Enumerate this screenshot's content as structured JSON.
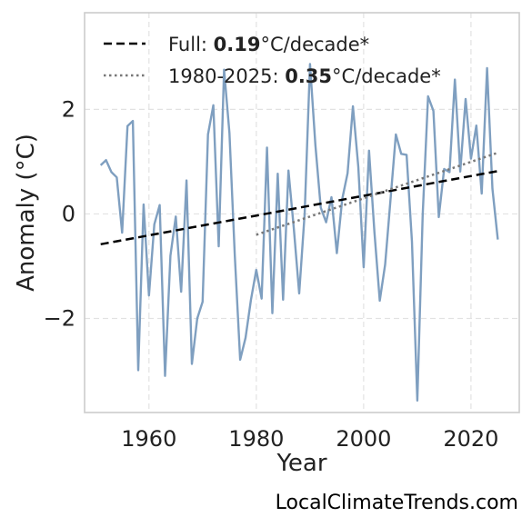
{
  "chart_data": {
    "type": "line",
    "xlabel": "Year",
    "ylabel": "Anomaly (°C)",
    "xlim": [
      1948,
      2029
    ],
    "ylim": [
      -3.8,
      3.85
    ],
    "xticks": [
      1960,
      1980,
      2000,
      2020
    ],
    "yticks": [
      -2,
      0,
      2
    ],
    "ytick_labels": [
      "−2",
      "0",
      "2"
    ],
    "grid": true,
    "legend_position": "top-left",
    "series": [
      {
        "style": "solid",
        "color": "#7f9fc0",
        "x": [
          1951,
          1952,
          1953,
          1954,
          1955,
          1956,
          1957,
          1958,
          1959,
          1960,
          1961,
          1962,
          1963,
          1964,
          1965,
          1966,
          1967,
          1968,
          1969,
          1970,
          1971,
          1972,
          1973,
          1974,
          1975,
          1976,
          1977,
          1978,
          1979,
          1980,
          1981,
          1982,
          1983,
          1984,
          1985,
          1986,
          1987,
          1988,
          1989,
          1990,
          1991,
          1992,
          1993,
          1994,
          1995,
          1996,
          1997,
          1998,
          1999,
          2000,
          2001,
          2002,
          2003,
          2004,
          2005,
          2006,
          2007,
          2008,
          2009,
          2010,
          2011,
          2012,
          2013,
          2014,
          2015,
          2016,
          2017,
          2018,
          2019,
          2020,
          2021,
          2022,
          2023,
          2024,
          2025
        ],
        "y": [
          0.93,
          1.03,
          0.8,
          0.7,
          -0.36,
          1.68,
          1.78,
          -2.99,
          0.18,
          -1.56,
          -0.2,
          0.17,
          -3.1,
          -0.8,
          -0.05,
          -1.49,
          0.64,
          -2.87,
          -2.0,
          -1.68,
          1.52,
          2.08,
          -0.62,
          2.76,
          1.55,
          -0.8,
          -2.79,
          -2.37,
          -1.65,
          -1.07,
          -1.62,
          1.27,
          -1.9,
          0.77,
          -1.64,
          0.83,
          -0.28,
          -1.52,
          0.0,
          2.87,
          1.32,
          0.12,
          -0.16,
          0.32,
          -0.75,
          0.28,
          0.78,
          2.06,
          0.9,
          -1.02,
          1.21,
          -0.34,
          -1.66,
          -0.97,
          0.27,
          1.52,
          1.15,
          1.13,
          -0.53,
          -3.57,
          -0.02,
          2.25,
          1.97,
          -0.06,
          0.86,
          0.8,
          2.57,
          0.81,
          2.2,
          1.06,
          1.69,
          0.39,
          2.79,
          0.48,
          -0.49
        ]
      },
      {
        "style": "dashed",
        "color": "#000000",
        "x": [
          1951,
          2025
        ],
        "y": [
          -0.58,
          0.82
        ]
      },
      {
        "style": "dotted",
        "color": "#777777",
        "x": [
          1980,
          2025
        ],
        "y": [
          -0.4,
          1.17
        ]
      }
    ],
    "legend": [
      {
        "style": "dashed",
        "color": "#000000",
        "prefix": "Full: ",
        "value": "0.19",
        "suffix": "°C/decade*"
      },
      {
        "style": "dotted",
        "color": "#777777",
        "prefix": "1980-2025: ",
        "value": "0.35",
        "suffix": "°C/decade*"
      }
    ]
  },
  "watermark": "LocalClimateTrends.com"
}
